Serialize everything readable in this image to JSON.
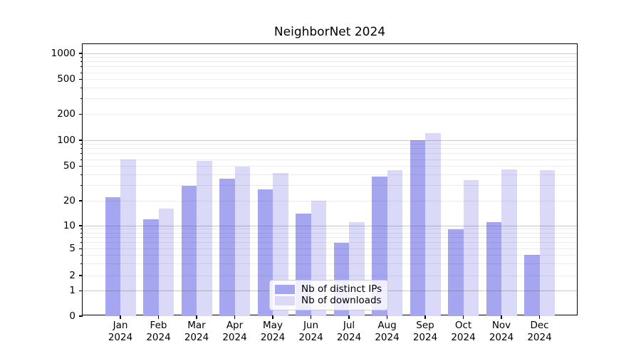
{
  "chart_data": {
    "type": "bar",
    "title": "NeighborNet 2024",
    "xlabel": "",
    "ylabel": "",
    "yscale": "symlog",
    "grid": true,
    "legend_position": "lower center",
    "yticks": [
      0,
      1,
      2,
      5,
      10,
      20,
      50,
      100,
      200,
      500,
      1000
    ],
    "ylim": [
      0,
      1500
    ],
    "categories": [
      {
        "month": "Jan",
        "year": "2024"
      },
      {
        "month": "Feb",
        "year": "2024"
      },
      {
        "month": "Mar",
        "year": "2024"
      },
      {
        "month": "Apr",
        "year": "2024"
      },
      {
        "month": "May",
        "year": "2024"
      },
      {
        "month": "Jun",
        "year": "2024"
      },
      {
        "month": "Jul",
        "year": "2024"
      },
      {
        "month": "Aug",
        "year": "2024"
      },
      {
        "month": "Sep",
        "year": "2024"
      },
      {
        "month": "Oct",
        "year": "2024"
      },
      {
        "month": "Nov",
        "year": "2024"
      },
      {
        "month": "Dec",
        "year": "2024"
      }
    ],
    "series": [
      {
        "name": "Nb of distinct IPs",
        "color": "#a5a5f0",
        "values": [
          22,
          12,
          30,
          36,
          27,
          14,
          6,
          38,
          100,
          9,
          11,
          4
        ]
      },
      {
        "name": "Nb of downloads",
        "color": "#dadaf8",
        "values": [
          60,
          16,
          58,
          50,
          42,
          20,
          11,
          45,
          120,
          35,
          46,
          45
        ]
      }
    ],
    "colors": {
      "axis": "#000000",
      "grid_major": "rgba(70,70,70,0.30)",
      "grid_minor": "rgba(0,0,0,0.07)",
      "legend_border": "#cccccc"
    }
  }
}
